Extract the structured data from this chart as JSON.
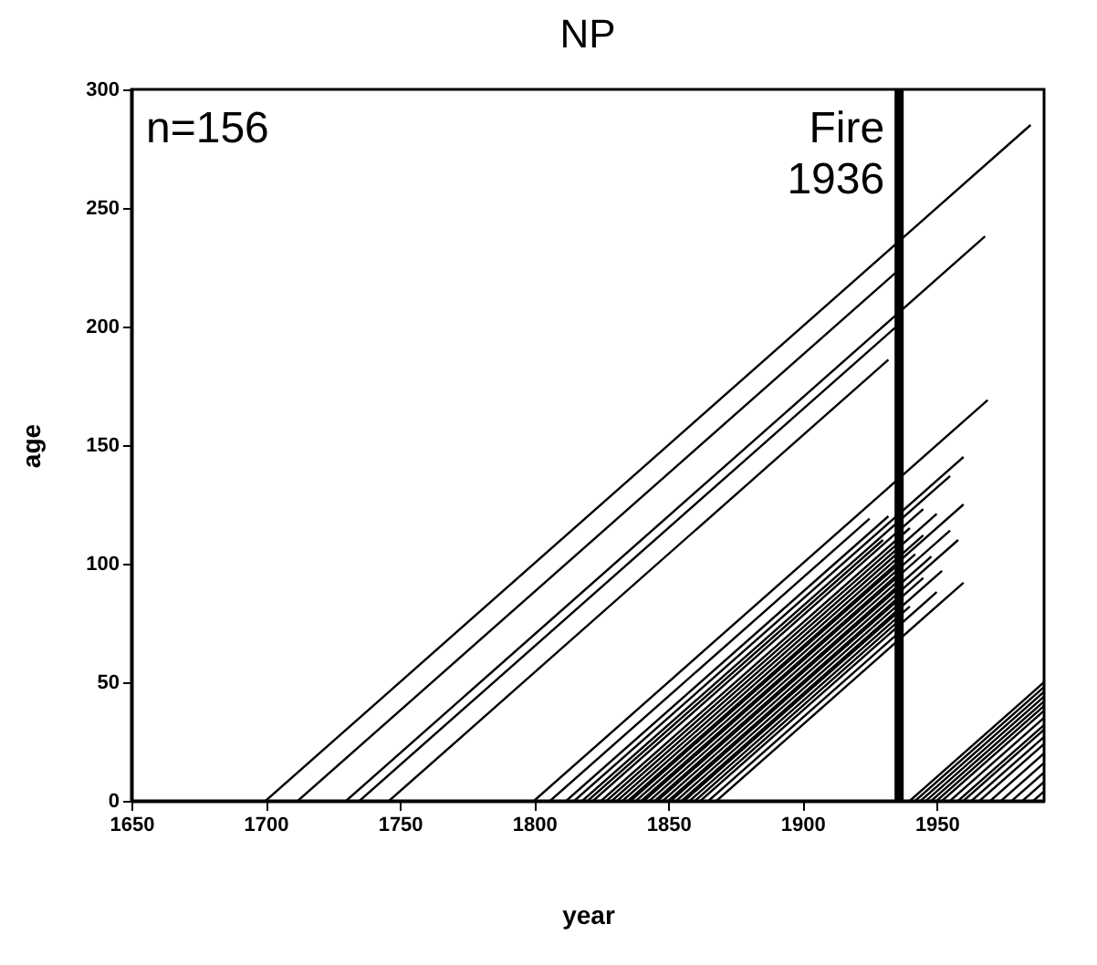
{
  "chart_data": {
    "type": "line",
    "title": "NP",
    "xlabel": "year",
    "ylabel": "age",
    "xlim": [
      1650,
      1990
    ],
    "xticks": [
      1650,
      1700,
      1750,
      1800,
      1850,
      1900,
      1950
    ],
    "ylim": [
      0,
      300
    ],
    "yticks": [
      0,
      50,
      100,
      150,
      200,
      250,
      300
    ],
    "annotations": [
      "n=156"
    ],
    "ref_lines": [
      {
        "axis": "x",
        "value": 1936,
        "label": "Fire 1936",
        "color": "#000000"
      }
    ],
    "series": [
      {
        "color": "#000000",
        "x": [
          1700,
          1985
        ],
        "values": [
          0,
          285
        ]
      },
      {
        "color": "#000000",
        "x": [
          1712,
          1936
        ],
        "values": [
          0,
          224
        ]
      },
      {
        "color": "#000000",
        "x": [
          1730,
          1968
        ],
        "values": [
          0,
          238
        ]
      },
      {
        "color": "#000000",
        "x": [
          1735,
          1936
        ],
        "values": [
          0,
          201
        ]
      },
      {
        "color": "#000000",
        "x": [
          1746,
          1932
        ],
        "values": [
          0,
          186
        ]
      },
      {
        "color": "#000000",
        "x": [
          1800,
          1969
        ],
        "values": [
          0,
          169
        ]
      },
      {
        "color": "#000000",
        "x": [
          1806,
          1925
        ],
        "values": [
          0,
          119
        ]
      },
      {
        "color": "#000000",
        "x": [
          1812,
          1932
        ],
        "values": [
          0,
          120
        ]
      },
      {
        "color": "#000000",
        "x": [
          1815,
          1960
        ],
        "values": [
          0,
          145
        ]
      },
      {
        "color": "#000000",
        "x": [
          1818,
          1955
        ],
        "values": [
          0,
          137
        ]
      },
      {
        "color": "#000000",
        "x": [
          1820,
          1930
        ],
        "values": [
          0,
          110
        ]
      },
      {
        "color": "#000000",
        "x": [
          1822,
          1945
        ],
        "values": [
          0,
          123
        ]
      },
      {
        "color": "#000000",
        "x": [
          1825,
          1940
        ],
        "values": [
          0,
          115
        ]
      },
      {
        "color": "#000000",
        "x": [
          1827,
          1936
        ],
        "values": [
          0,
          109
        ]
      },
      {
        "color": "#000000",
        "x": [
          1829,
          1950
        ],
        "values": [
          0,
          121
        ]
      },
      {
        "color": "#000000",
        "x": [
          1831,
          1936
        ],
        "values": [
          0,
          105
        ]
      },
      {
        "color": "#000000",
        "x": [
          1833,
          1945
        ],
        "values": [
          0,
          112
        ]
      },
      {
        "color": "#000000",
        "x": [
          1835,
          1960
        ],
        "values": [
          0,
          125
        ]
      },
      {
        "color": "#000000",
        "x": [
          1836,
          1936
        ],
        "values": [
          0,
          100
        ]
      },
      {
        "color": "#000000",
        "x": [
          1838,
          1942
        ],
        "values": [
          0,
          104
        ]
      },
      {
        "color": "#000000",
        "x": [
          1840,
          1936
        ],
        "values": [
          0,
          96
        ]
      },
      {
        "color": "#000000",
        "x": [
          1841,
          1955
        ],
        "values": [
          0,
          114
        ]
      },
      {
        "color": "#000000",
        "x": [
          1843,
          1936
        ],
        "values": [
          0,
          93
        ]
      },
      {
        "color": "#000000",
        "x": [
          1845,
          1948
        ],
        "values": [
          0,
          103
        ]
      },
      {
        "color": "#000000",
        "x": [
          1846,
          1936
        ],
        "values": [
          0,
          90
        ]
      },
      {
        "color": "#000000",
        "x": [
          1848,
          1958
        ],
        "values": [
          0,
          110
        ]
      },
      {
        "color": "#000000",
        "x": [
          1850,
          1936
        ],
        "values": [
          0,
          86
        ]
      },
      {
        "color": "#000000",
        "x": [
          1851,
          1945
        ],
        "values": [
          0,
          94
        ]
      },
      {
        "color": "#000000",
        "x": [
          1853,
          1936
        ],
        "values": [
          0,
          83
        ]
      },
      {
        "color": "#000000",
        "x": [
          1855,
          1952
        ],
        "values": [
          0,
          97
        ]
      },
      {
        "color": "#000000",
        "x": [
          1856,
          1936
        ],
        "values": [
          0,
          80
        ]
      },
      {
        "color": "#000000",
        "x": [
          1858,
          1940
        ],
        "values": [
          0,
          82
        ]
      },
      {
        "color": "#000000",
        "x": [
          1860,
          1936
        ],
        "values": [
          0,
          76
        ]
      },
      {
        "color": "#000000",
        "x": [
          1862,
          1950
        ],
        "values": [
          0,
          88
        ]
      },
      {
        "color": "#000000",
        "x": [
          1865,
          1936
        ],
        "values": [
          0,
          71
        ]
      },
      {
        "color": "#000000",
        "x": [
          1868,
          1960
        ],
        "values": [
          0,
          92
        ]
      },
      {
        "color": "#000000",
        "x": [
          1940,
          1990
        ],
        "values": [
          0,
          50
        ]
      },
      {
        "color": "#000000",
        "x": [
          1942,
          1990
        ],
        "values": [
          0,
          48
        ]
      },
      {
        "color": "#000000",
        "x": [
          1944,
          1990
        ],
        "values": [
          0,
          46
        ]
      },
      {
        "color": "#000000",
        "x": [
          1946,
          1990
        ],
        "values": [
          0,
          44
        ]
      },
      {
        "color": "#000000",
        "x": [
          1948,
          1990
        ],
        "values": [
          0,
          42
        ]
      },
      {
        "color": "#000000",
        "x": [
          1950,
          1990
        ],
        "values": [
          0,
          40
        ]
      },
      {
        "color": "#000000",
        "x": [
          1952,
          1990
        ],
        "values": [
          0,
          38
        ]
      },
      {
        "color": "#000000",
        "x": [
          1955,
          1990
        ],
        "values": [
          0,
          35
        ]
      },
      {
        "color": "#000000",
        "x": [
          1958,
          1990
        ],
        "values": [
          0,
          32
        ]
      },
      {
        "color": "#000000",
        "x": [
          1960,
          1990
        ],
        "values": [
          0,
          30
        ]
      },
      {
        "color": "#000000",
        "x": [
          1963,
          1990
        ],
        "values": [
          0,
          27
        ]
      },
      {
        "color": "#000000",
        "x": [
          1966,
          1990
        ],
        "values": [
          0,
          24
        ]
      },
      {
        "color": "#000000",
        "x": [
          1970,
          1990
        ],
        "values": [
          0,
          20
        ]
      },
      {
        "color": "#000000",
        "x": [
          1974,
          1990
        ],
        "values": [
          0,
          16
        ]
      },
      {
        "color": "#000000",
        "x": [
          1978,
          1990
        ],
        "values": [
          0,
          12
        ]
      },
      {
        "color": "#000000",
        "x": [
          1982,
          1990
        ],
        "values": [
          0,
          8
        ]
      },
      {
        "color": "#000000",
        "x": [
          1986,
          1990
        ],
        "values": [
          0,
          4
        ]
      }
    ]
  }
}
